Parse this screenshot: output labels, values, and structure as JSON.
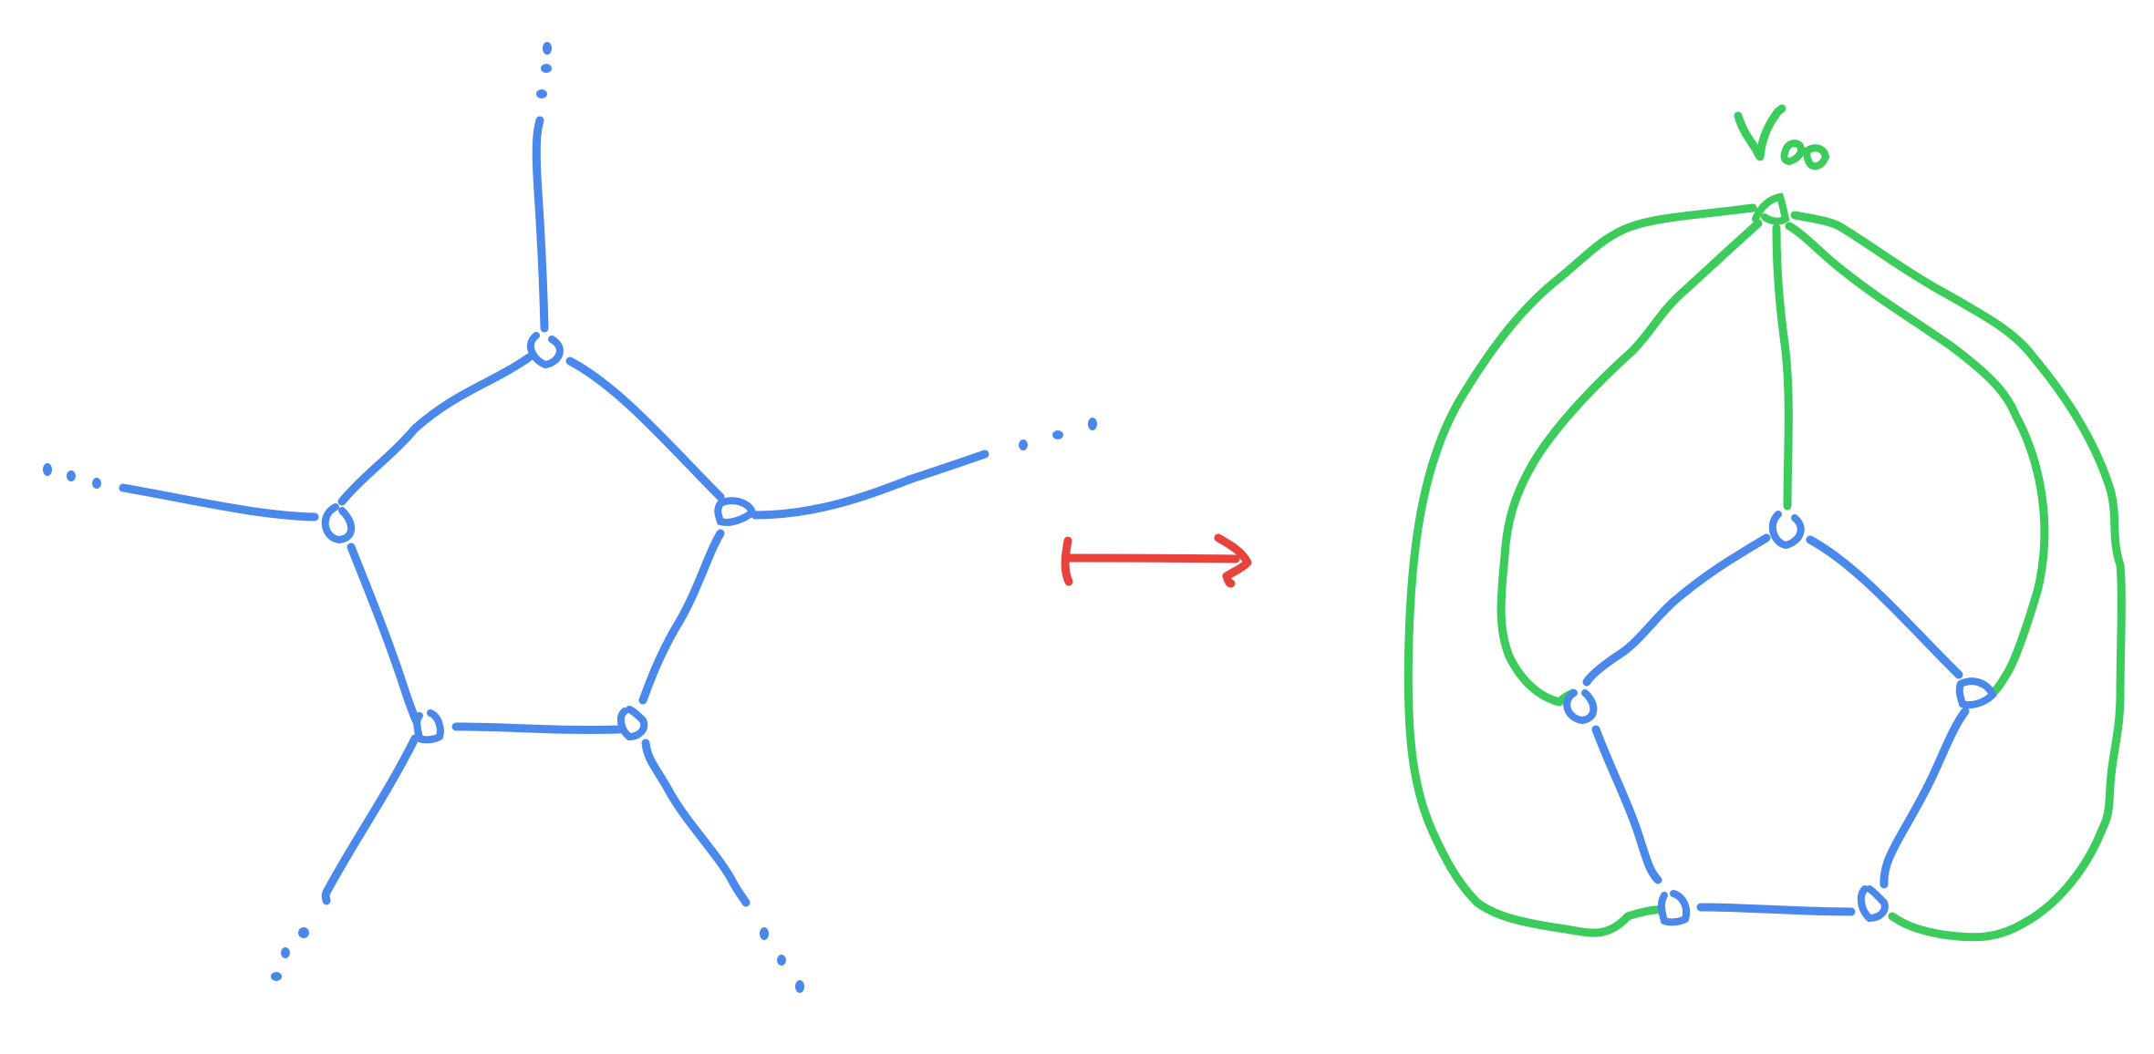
{
  "colors": {
    "graph": "#4a88ec",
    "added": "#3ccc5c",
    "arrow": "#e8423c",
    "background": "#ffffff"
  },
  "left_graph": {
    "description_nodes": 5,
    "outgoing_edges": 5
  },
  "arrow": {
    "type": "maps-to"
  },
  "right_graph": {
    "new_vertex_label": "v₀"
  }
}
